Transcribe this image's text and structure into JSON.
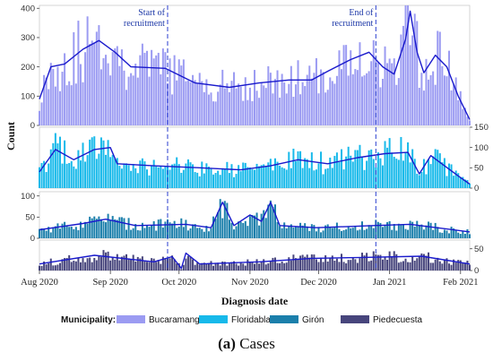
{
  "caption": {
    "label": "(a)",
    "text": "Cases"
  },
  "chart_data": {
    "type": "bar",
    "xlabel": "Diagnosis date",
    "ylabel": "Count",
    "x_start": "2020-08-01",
    "x_end": "2021-02-05",
    "x_ticks": [
      {
        "date": "2020-08-01",
        "label": "Aug 2020"
      },
      {
        "date": "2020-09-01",
        "label": "Sep 2020"
      },
      {
        "date": "2020-10-01",
        "label": "Oct 2020"
      },
      {
        "date": "2020-11-01",
        "label": "Nov 2020"
      },
      {
        "date": "2020-12-01",
        "label": "Dec 2020"
      },
      {
        "date": "2021-01-01",
        "label": "Jan 2021"
      },
      {
        "date": "2021-02-01",
        "label": "Feb 2021"
      }
    ],
    "annotations": [
      {
        "date": "2020-09-26",
        "lines": [
          "Start of",
          "recruitment"
        ]
      },
      {
        "date": "2020-12-26",
        "lines": [
          "End of",
          "recruitment"
        ]
      }
    ],
    "legend": {
      "title": "Municipality:",
      "position": "bottom"
    },
    "panels": [
      {
        "name": "Bucaramanga",
        "color": "#9b9bf2",
        "ylim": [
          0,
          410
        ],
        "yticks": [
          0,
          100,
          200,
          300,
          400
        ],
        "axis_side": "left",
        "trend": [
          {
            "date": "2020-08-01",
            "value": 90
          },
          {
            "date": "2020-08-06",
            "value": 200
          },
          {
            "date": "2020-08-12",
            "value": 210
          },
          {
            "date": "2020-08-20",
            "value": 260
          },
          {
            "date": "2020-08-27",
            "value": 290
          },
          {
            "date": "2020-09-03",
            "value": 250
          },
          {
            "date": "2020-09-10",
            "value": 200
          },
          {
            "date": "2020-09-25",
            "value": 195
          },
          {
            "date": "2020-10-08",
            "value": 145
          },
          {
            "date": "2020-10-23",
            "value": 130
          },
          {
            "date": "2020-11-05",
            "value": 145
          },
          {
            "date": "2020-11-18",
            "value": 155
          },
          {
            "date": "2020-11-28",
            "value": 155
          },
          {
            "date": "2020-12-05",
            "value": 185
          },
          {
            "date": "2020-12-15",
            "value": 225
          },
          {
            "date": "2020-12-23",
            "value": 250
          },
          {
            "date": "2020-12-29",
            "value": 200
          },
          {
            "date": "2021-01-03",
            "value": 175
          },
          {
            "date": "2021-01-08",
            "value": 295
          },
          {
            "date": "2021-01-10",
            "value": 390
          },
          {
            "date": "2021-01-13",
            "value": 250
          },
          {
            "date": "2021-01-16",
            "value": 180
          },
          {
            "date": "2021-01-21",
            "value": 240
          },
          {
            "date": "2021-01-26",
            "value": 200
          },
          {
            "date": "2021-01-31",
            "value": 100
          },
          {
            "date": "2021-02-05",
            "value": 20
          }
        ]
      },
      {
        "name": "Floridablanca",
        "color": "#17b9ea",
        "ylim": [
          0,
          150
        ],
        "yticks": [
          0,
          50,
          100,
          150
        ],
        "axis_side": "right",
        "trend": [
          {
            "date": "2020-08-01",
            "value": 40
          },
          {
            "date": "2020-08-08",
            "value": 95
          },
          {
            "date": "2020-08-16",
            "value": 70
          },
          {
            "date": "2020-08-25",
            "value": 95
          },
          {
            "date": "2020-09-01",
            "value": 100
          },
          {
            "date": "2020-09-04",
            "value": 60
          },
          {
            "date": "2020-09-20",
            "value": 55
          },
          {
            "date": "2020-10-10",
            "value": 50
          },
          {
            "date": "2020-10-28",
            "value": 45
          },
          {
            "date": "2020-11-10",
            "value": 55
          },
          {
            "date": "2020-11-22",
            "value": 70
          },
          {
            "date": "2020-12-05",
            "value": 60
          },
          {
            "date": "2020-12-18",
            "value": 75
          },
          {
            "date": "2020-12-30",
            "value": 85
          },
          {
            "date": "2021-01-09",
            "value": 88
          },
          {
            "date": "2021-01-14",
            "value": 35
          },
          {
            "date": "2021-01-19",
            "value": 80
          },
          {
            "date": "2021-01-25",
            "value": 55
          },
          {
            "date": "2021-01-31",
            "value": 30
          },
          {
            "date": "2021-02-05",
            "value": 10
          }
        ]
      },
      {
        "name": "Girón",
        "color": "#1b7fab",
        "ylim": [
          0,
          110
        ],
        "yticks": [
          0,
          50,
          100
        ],
        "axis_side": "left",
        "trend": [
          {
            "date": "2020-08-01",
            "value": 20
          },
          {
            "date": "2020-08-20",
            "value": 35
          },
          {
            "date": "2020-08-30",
            "value": 45
          },
          {
            "date": "2020-09-12",
            "value": 30
          },
          {
            "date": "2020-10-04",
            "value": 33
          },
          {
            "date": "2020-10-15",
            "value": 25
          },
          {
            "date": "2020-10-20",
            "value": 85
          },
          {
            "date": "2020-10-25",
            "value": 30
          },
          {
            "date": "2020-11-01",
            "value": 55
          },
          {
            "date": "2020-11-06",
            "value": 40
          },
          {
            "date": "2020-11-10",
            "value": 85
          },
          {
            "date": "2020-11-14",
            "value": 30
          },
          {
            "date": "2020-11-30",
            "value": 25
          },
          {
            "date": "2020-12-25",
            "value": 30
          },
          {
            "date": "2021-01-10",
            "value": 33
          },
          {
            "date": "2021-02-05",
            "value": 15
          }
        ]
      },
      {
        "name": "Piedecuesta",
        "color": "#47457c",
        "ylim": [
          0,
          70
        ],
        "yticks": [
          0,
          50
        ],
        "axis_side": "right",
        "trend": [
          {
            "date": "2020-08-01",
            "value": 15
          },
          {
            "date": "2020-08-25",
            "value": 35
          },
          {
            "date": "2020-09-20",
            "value": 20
          },
          {
            "date": "2020-09-28",
            "value": 32
          },
          {
            "date": "2020-10-02",
            "value": 5
          },
          {
            "date": "2020-10-04",
            "value": 40
          },
          {
            "date": "2020-10-10",
            "value": 15
          },
          {
            "date": "2020-11-05",
            "value": 20
          },
          {
            "date": "2020-11-28",
            "value": 28
          },
          {
            "date": "2020-12-20",
            "value": 30
          },
          {
            "date": "2021-01-15",
            "value": 33
          },
          {
            "date": "2021-02-05",
            "value": 15
          }
        ]
      }
    ]
  }
}
